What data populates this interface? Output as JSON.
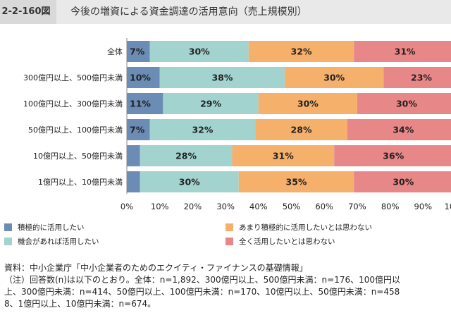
{
  "header": {
    "figure_number": "2-2-160図",
    "title": "今後の増資による資金調達の活用意向（売上規模別）"
  },
  "chart_data": {
    "type": "bar",
    "orientation": "horizontal",
    "stacked": true,
    "categories": [
      "全体",
      "300億円以上、500億円未満",
      "100億円以上、300億円未満",
      "50億円以上、100億円未満",
      "10億円以上、50億円未満",
      "1億円以上、10億円未満"
    ],
    "series": [
      {
        "name": "積極的に活用したい",
        "color": "#6b8db5",
        "values": [
          7,
          10,
          11,
          7,
          4,
          4
        ],
        "labels": [
          "7%",
          "10%",
          "11%",
          "7%",
          "",
          ""
        ]
      },
      {
        "name": "機会があれば活用したい",
        "color": "#a2d3cf",
        "values": [
          30,
          38,
          29,
          32,
          28,
          30
        ],
        "labels": [
          "30%",
          "38%",
          "29%",
          "32%",
          "28%",
          "30%"
        ]
      },
      {
        "name": "あまり積極的に活用したいとは思わない",
        "color": "#f5b06c",
        "values": [
          32,
          30,
          30,
          28,
          31,
          35
        ],
        "labels": [
          "32%",
          "30%",
          "30%",
          "28%",
          "31%",
          "35%"
        ]
      },
      {
        "name": "全く活用したいとは思わない",
        "color": "#e88788",
        "values": [
          31,
          23,
          30,
          34,
          36,
          30
        ],
        "labels": [
          "31%",
          "23%",
          "30%",
          "34%",
          "36%",
          "30%"
        ]
      }
    ],
    "xlim": [
      0,
      100
    ],
    "x_ticks": [
      "0%",
      "10%",
      "20%",
      "30%",
      "40%",
      "50%",
      "60%",
      "70%",
      "80%",
      "90%",
      "100%"
    ],
    "legend_position": "bottom",
    "grid": false
  },
  "source": "資料：中小企業庁「中小企業者のためのエクイティ・ファイナンスの基礎情報」",
  "note_lines": [
    "（注）回答数(n)は以下のとおり。全体：n=1,892、300億円以上、500億円未満：n=176、100億円以",
    "上、300億円未満：n=414、50億円以上、100億円未満：n=170、10億円以上、50億円未満：n=458",
    "8、1億円以上、10億円未満：n=674。"
  ]
}
